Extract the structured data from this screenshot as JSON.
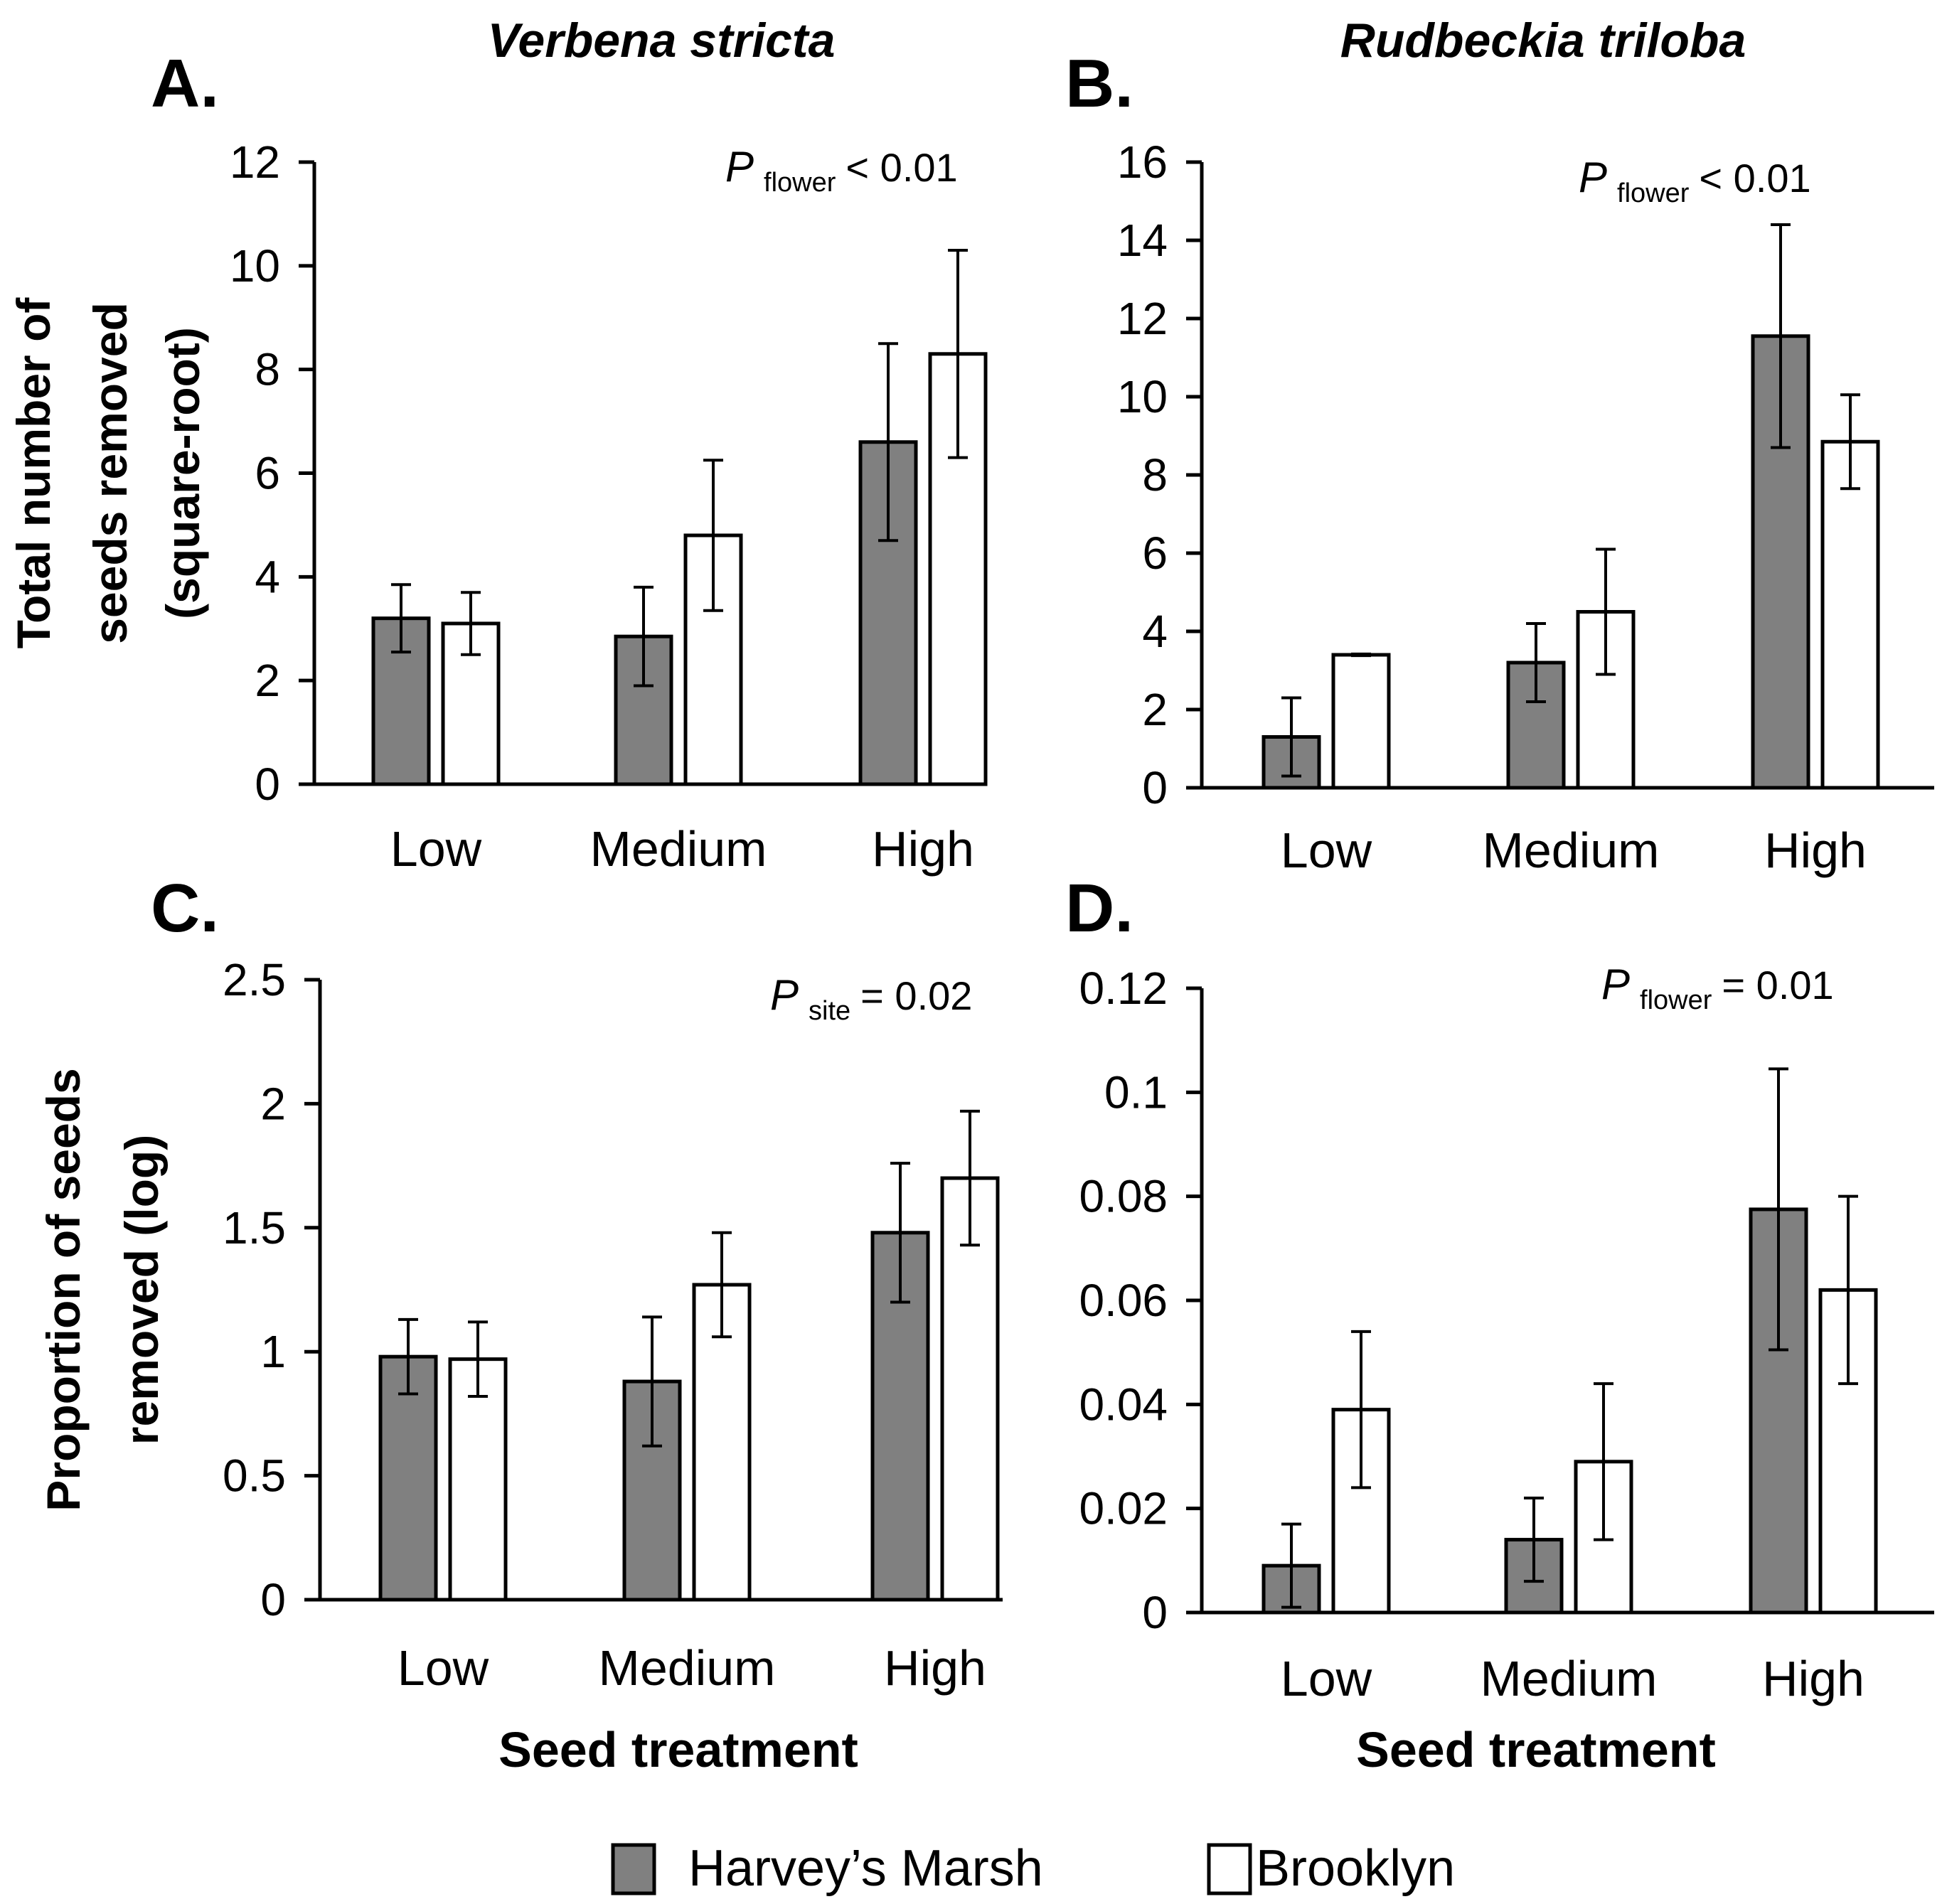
{
  "column_titles": [
    "Verbena stricta",
    "Rudbeckia triloba"
  ],
  "legend": [
    {
      "label": "Harvey’s Marsh",
      "color": "#808080"
    },
    {
      "label": "Brooklyn",
      "color": "#ffffff"
    }
  ],
  "chart_data": [
    {
      "panel": "A.",
      "type": "bar",
      "title": "Verbena stricta",
      "ylabel": [
        "Total number of",
        "seeds removed",
        "(square-root)"
      ],
      "xlabel": "",
      "categories": [
        "Low",
        "Medium",
        "High"
      ],
      "ylim": [
        0,
        12
      ],
      "yticks": [
        0,
        2,
        4,
        6,
        8,
        10,
        12
      ],
      "ytick_labels": [
        "0",
        "2",
        "4",
        "6",
        "8",
        "10",
        "12"
      ],
      "annotation": {
        "p": "P",
        "sub": "flower",
        "rest": "< 0.01"
      },
      "series": [
        {
          "name": "Harvey’s Marsh",
          "color": "#808080",
          "values": [
            3.2,
            2.85,
            6.6
          ],
          "errors": [
            0.65,
            0.95,
            1.9
          ]
        },
        {
          "name": "Brooklyn",
          "color": "#ffffff",
          "values": [
            3.1,
            4.8,
            8.3
          ],
          "errors": [
            0.6,
            1.45,
            2.0
          ]
        }
      ]
    },
    {
      "panel": "B.",
      "type": "bar",
      "title": "Rudbeckia triloba",
      "ylabel": [],
      "xlabel": "",
      "categories": [
        "Low",
        "Medium",
        "High"
      ],
      "ylim": [
        0,
        16
      ],
      "yticks": [
        0,
        2,
        4,
        6,
        8,
        10,
        12,
        14,
        16
      ],
      "ytick_labels": [
        "0",
        "2",
        "4",
        "6",
        "8",
        "10",
        "12",
        "14",
        "16"
      ],
      "annotation": {
        "p": "P",
        "sub": "flower",
        "rest": "< 0.01"
      },
      "series": [
        {
          "name": "Harvey’s Marsh",
          "color": "#808080",
          "values": [
            1.3,
            3.2,
            11.55
          ],
          "errors": [
            1.0,
            1.0,
            2.85
          ]
        },
        {
          "name": "Brooklyn",
          "color": "#ffffff",
          "values": [
            3.4,
            4.5,
            8.85
          ],
          "errors": [
            0.02,
            1.6,
            1.2
          ]
        }
      ]
    },
    {
      "panel": "C.",
      "type": "bar",
      "title": "",
      "ylabel": [
        "Proportion of seeds",
        "removed (log)"
      ],
      "xlabel": "Seed treatment",
      "categories": [
        "Low",
        "Medium",
        "High"
      ],
      "ylim": [
        0,
        2.5
      ],
      "yticks": [
        0,
        0.5,
        1,
        1.5,
        2,
        2.5
      ],
      "ytick_labels": [
        "0",
        "0.5",
        "1",
        "1.5",
        "2",
        "2.5"
      ],
      "annotation": {
        "p": "P",
        "sub": "site",
        "rest": "= 0.02"
      },
      "series": [
        {
          "name": "Harvey’s Marsh",
          "color": "#808080",
          "values": [
            0.98,
            0.88,
            1.48
          ],
          "errors": [
            0.15,
            0.26,
            0.28
          ]
        },
        {
          "name": "Brooklyn",
          "color": "#ffffff",
          "values": [
            0.97,
            1.27,
            1.7
          ],
          "errors": [
            0.15,
            0.21,
            0.27
          ]
        }
      ]
    },
    {
      "panel": "D.",
      "type": "bar",
      "title": "",
      "ylabel": [],
      "xlabel": "Seed treatment",
      "categories": [
        "Low",
        "Medium",
        "High"
      ],
      "ylim": [
        0,
        0.12
      ],
      "yticks": [
        0,
        0.02,
        0.04,
        0.06,
        0.08,
        0.1,
        0.12
      ],
      "ytick_labels": [
        "0",
        "0.02",
        "0.04",
        "0.06",
        "0.08",
        "0.1",
        "0.12"
      ],
      "annotation": {
        "p": "P",
        "sub": "flower",
        "rest": "= 0.01"
      },
      "series": [
        {
          "name": "Harvey’s Marsh",
          "color": "#808080",
          "values": [
            0.009,
            0.014,
            0.0775
          ],
          "errors": [
            0.008,
            0.008,
            0.027
          ]
        },
        {
          "name": "Brooklyn",
          "color": "#ffffff",
          "values": [
            0.039,
            0.029,
            0.062
          ],
          "errors": [
            0.015,
            0.015,
            0.018
          ]
        }
      ]
    }
  ]
}
